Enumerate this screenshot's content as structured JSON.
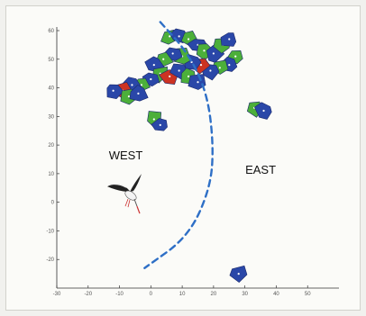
{
  "chart_data": {
    "type": "scatter",
    "title": "",
    "xlabel": "",
    "ylabel": "",
    "xlim": [
      -30,
      60
    ],
    "ylim": [
      -30,
      60
    ],
    "x_ticks": [
      "-30",
      "-20",
      "-10",
      "0",
      "10",
      "20",
      "30",
      "40",
      "50"
    ],
    "y_ticks": [
      "60",
      "50",
      "40",
      "30",
      "20",
      "10",
      "0",
      "-10",
      "-20"
    ],
    "grid": false,
    "annotations": [
      {
        "text": "WEST",
        "x": -8,
        "y": 15
      },
      {
        "text": "EAST",
        "x": 35,
        "y": 10
      }
    ],
    "divide_line": {
      "style": "dashed",
      "color": "#2e6fc6",
      "points": [
        [
          3,
          63
        ],
        [
          12,
          52
        ],
        [
          18,
          38
        ],
        [
          20,
          20
        ],
        [
          19,
          5
        ],
        [
          12,
          -12
        ],
        [
          -2,
          -23
        ]
      ]
    },
    "colors": {
      "blue": "#2a47a8",
      "green": "#4caf3a",
      "red": "#cc3322",
      "line": "#2e6fc6"
    },
    "stork_image": {
      "icon": "white-stork-illustration",
      "x": -7,
      "y": 3
    },
    "cells": [
      {
        "x": 6,
        "y": 58,
        "color": "green"
      },
      {
        "x": 9,
        "y": 58,
        "color": "blue"
      },
      {
        "x": 12,
        "y": 57,
        "color": "green"
      },
      {
        "x": 15,
        "y": 55,
        "color": "blue"
      },
      {
        "x": 17,
        "y": 53,
        "color": "green"
      },
      {
        "x": 20,
        "y": 52,
        "color": "blue"
      },
      {
        "x": 23,
        "y": 55,
        "color": "green"
      },
      {
        "x": 25,
        "y": 57,
        "color": "blue"
      },
      {
        "x": 27,
        "y": 51,
        "color": "green"
      },
      {
        "x": 25,
        "y": 48,
        "color": "blue"
      },
      {
        "x": 22,
        "y": 47,
        "color": "green"
      },
      {
        "x": 19,
        "y": 46,
        "color": "blue"
      },
      {
        "x": 16,
        "y": 48,
        "color": "red"
      },
      {
        "x": 13,
        "y": 49,
        "color": "blue"
      },
      {
        "x": 10,
        "y": 51,
        "color": "green"
      },
      {
        "x": 7,
        "y": 52,
        "color": "blue"
      },
      {
        "x": 4,
        "y": 50,
        "color": "green"
      },
      {
        "x": 1,
        "y": 48,
        "color": "blue"
      },
      {
        "x": 3,
        "y": 45,
        "color": "green"
      },
      {
        "x": 6,
        "y": 44,
        "color": "red"
      },
      {
        "x": 9,
        "y": 46,
        "color": "blue"
      },
      {
        "x": 12,
        "y": 44,
        "color": "green"
      },
      {
        "x": 15,
        "y": 42,
        "color": "blue"
      },
      {
        "x": 0,
        "y": 43,
        "color": "blue"
      },
      {
        "x": -3,
        "y": 41,
        "color": "green"
      },
      {
        "x": -6,
        "y": 41,
        "color": "blue"
      },
      {
        "x": -9,
        "y": 39,
        "color": "red"
      },
      {
        "x": -12,
        "y": 39,
        "color": "blue"
      },
      {
        "x": -7,
        "y": 37,
        "color": "green"
      },
      {
        "x": -4,
        "y": 38,
        "color": "blue"
      },
      {
        "x": 1,
        "y": 29,
        "color": "green"
      },
      {
        "x": 3,
        "y": 27,
        "color": "blue"
      },
      {
        "x": 33,
        "y": 33,
        "color": "green"
      },
      {
        "x": 36,
        "y": 32,
        "color": "blue"
      },
      {
        "x": 28,
        "y": -25,
        "color": "blue"
      }
    ]
  }
}
